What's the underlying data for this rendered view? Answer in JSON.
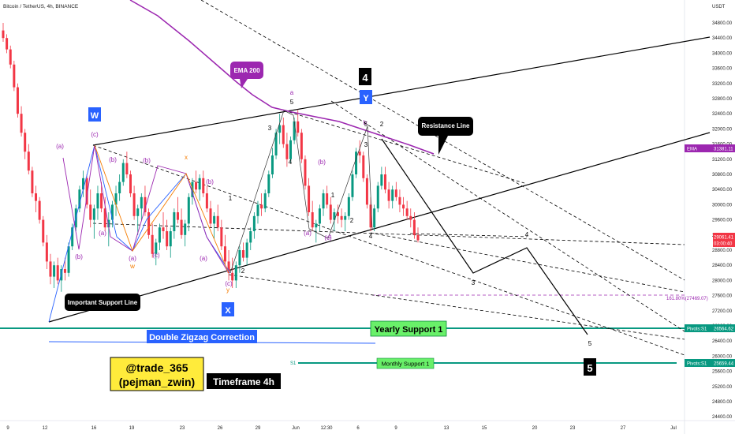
{
  "header": {
    "title": "Bitcoin / TetherUS, 4h, BINANCE",
    "currency": "USDT"
  },
  "chart_data": {
    "type": "candlestick",
    "y_axis": {
      "ticks": [
        "34800.00",
        "34400.00",
        "34000.00",
        "33600.00",
        "33200.00",
        "32800.00",
        "32400.00",
        "32000.00",
        "31600.00",
        "31200.00",
        "30800.00",
        "30400.00",
        "30000.00",
        "29600.00",
        "29200.00",
        "28800.00",
        "28400.00",
        "28000.00",
        "27600.00",
        "27200.00",
        "26800.00",
        "26400.00",
        "26000.00",
        "25600.00",
        "25200.00",
        "24800.00",
        "24400.00"
      ]
    },
    "x_axis": {
      "ticks": [
        "9",
        "12",
        "16",
        "19",
        "23",
        "26",
        "29",
        "Jun",
        "12:30",
        "6",
        "9",
        "13",
        "15",
        "20",
        "23",
        "27",
        "Jul"
      ]
    },
    "price_tags": [
      {
        "label": "EMA",
        "value": "31381.11",
        "color": "#9c27b0"
      },
      {
        "label": "",
        "value": "29061.41",
        "sub": "03:00:40",
        "color": "#f23645"
      },
      {
        "label": "Pivots:S1",
        "value": "26564.62",
        "color": "#089981"
      },
      {
        "label": "Pivots:S1",
        "value": "25659.44",
        "color": "#089981"
      }
    ],
    "candles_ohlc": [
      [
        34600,
        34800,
        34300,
        34400
      ],
      [
        34400,
        34500,
        34000,
        34100
      ],
      [
        34100,
        34200,
        33600,
        33700
      ],
      [
        33700,
        33800,
        33000,
        33100
      ],
      [
        33100,
        33200,
        32300,
        32400
      ],
      [
        32400,
        32600,
        31800,
        31900
      ],
      [
        31900,
        32000,
        31200,
        31400
      ],
      [
        31400,
        31600,
        30800,
        30900
      ],
      [
        30900,
        31000,
        30200,
        30300
      ],
      [
        30300,
        30500,
        29800,
        30100
      ],
      [
        30100,
        30200,
        29500,
        29600
      ],
      [
        29600,
        29700,
        28900,
        29000
      ],
      [
        29000,
        29200,
        28300,
        28500
      ],
      [
        28500,
        28700,
        27900,
        28100
      ],
      [
        28100,
        28500,
        27800,
        28400
      ],
      [
        28400,
        28600,
        27900,
        28000
      ],
      [
        28000,
        28400,
        27700,
        28300
      ],
      [
        28300,
        28600,
        28000,
        28200
      ],
      [
        28200,
        29000,
        28100,
        28900
      ],
      [
        28900,
        29500,
        28800,
        29400
      ],
      [
        29400,
        30000,
        29300,
        29900
      ],
      [
        29900,
        30500,
        29800,
        30400
      ],
      [
        30400,
        30900,
        30200,
        30700
      ],
      [
        30700,
        30800,
        29900,
        30000
      ],
      [
        30000,
        30400,
        29400,
        29600
      ],
      [
        29600,
        30000,
        29100,
        29900
      ],
      [
        29900,
        30500,
        29600,
        30300
      ],
      [
        30300,
        30600,
        29800,
        29900
      ],
      [
        29900,
        30200,
        29300,
        29400
      ],
      [
        29400,
        29800,
        28900,
        29600
      ],
      [
        29600,
        30100,
        29400,
        30000
      ],
      [
        30000,
        30500,
        29700,
        30300
      ],
      [
        30300,
        30800,
        30100,
        30600
      ],
      [
        30600,
        31200,
        30500,
        31100
      ],
      [
        31100,
        31400,
        30700,
        30800
      ],
      [
        30800,
        30900,
        30200,
        30300
      ],
      [
        30300,
        30500,
        29600,
        29700
      ],
      [
        29700,
        30000,
        29200,
        29900
      ],
      [
        29900,
        30300,
        29600,
        30200
      ],
      [
        30200,
        30500,
        29700,
        29800
      ],
      [
        29800,
        29900,
        29100,
        29200
      ],
      [
        29200,
        29500,
        28600,
        28700
      ],
      [
        28700,
        29100,
        28400,
        29000
      ],
      [
        29000,
        29500,
        28800,
        29400
      ],
      [
        29400,
        29800,
        29100,
        29300
      ],
      [
        29300,
        29600,
        28800,
        28900
      ],
      [
        28900,
        29400,
        28600,
        29300
      ],
      [
        29300,
        29900,
        29100,
        29800
      ],
      [
        29800,
        30200,
        29500,
        29600
      ],
      [
        29600,
        29900,
        29100,
        29200
      ],
      [
        29200,
        29600,
        28900,
        29500
      ],
      [
        29500,
        30300,
        29300,
        30200
      ],
      [
        30200,
        30700,
        30000,
        30600
      ],
      [
        30600,
        30900,
        30300,
        30400
      ],
      [
        30400,
        30800,
        30100,
        30700
      ],
      [
        30700,
        30900,
        30200,
        30300
      ],
      [
        30300,
        30500,
        29800,
        29900
      ],
      [
        29900,
        30100,
        29400,
        29500
      ],
      [
        29500,
        29800,
        29100,
        29700
      ],
      [
        29700,
        30000,
        29300,
        29400
      ],
      [
        29400,
        29600,
        28800,
        28900
      ],
      [
        28900,
        29200,
        28400,
        28500
      ],
      [
        28500,
        28800,
        28000,
        28200
      ],
      [
        28200,
        28600,
        27800,
        28000
      ],
      [
        28000,
        28500,
        27800,
        28400
      ],
      [
        28400,
        28900,
        28200,
        28800
      ],
      [
        28800,
        29000,
        28500,
        28600
      ],
      [
        28600,
        29100,
        28400,
        29000
      ],
      [
        29000,
        29400,
        28800,
        29300
      ],
      [
        29300,
        29800,
        29100,
        29700
      ],
      [
        29700,
        30100,
        29500,
        30000
      ],
      [
        30000,
        30300,
        29700,
        29900
      ],
      [
        29900,
        30400,
        29800,
        30300
      ],
      [
        30300,
        30900,
        30200,
        30800
      ],
      [
        30800,
        31500,
        30700,
        31300
      ],
      [
        31300,
        32000,
        31200,
        31900
      ],
      [
        31900,
        32400,
        31600,
        32100
      ],
      [
        32100,
        32300,
        31500,
        31600
      ],
      [
        31600,
        31900,
        31000,
        31200
      ],
      [
        31200,
        31800,
        31100,
        31700
      ],
      [
        31700,
        32300,
        31600,
        32200
      ],
      [
        32200,
        32500,
        31800,
        31900
      ],
      [
        31900,
        32000,
        31100,
        31200
      ],
      [
        31200,
        31300,
        30400,
        30500
      ],
      [
        30500,
        30700,
        29700,
        29800
      ],
      [
        29800,
        30100,
        29300,
        29400
      ],
      [
        29400,
        29600,
        29000,
        29500
      ],
      [
        29500,
        30000,
        29300,
        29900
      ],
      [
        29900,
        30400,
        29700,
        30300
      ],
      [
        30300,
        30500,
        29900,
        30000
      ],
      [
        30000,
        30200,
        29500,
        29600
      ],
      [
        29600,
        29900,
        29300,
        29800
      ],
      [
        29800,
        30000,
        29500,
        29700
      ],
      [
        29700,
        29900,
        29400,
        29600
      ],
      [
        29600,
        29800,
        29300,
        29700
      ],
      [
        29700,
        30300,
        29600,
        30200
      ],
      [
        30200,
        30900,
        30100,
        30800
      ],
      [
        30800,
        31500,
        30700,
        31400
      ],
      [
        31400,
        31700,
        31100,
        31300
      ],
      [
        31300,
        31400,
        30600,
        30700
      ],
      [
        30700,
        30800,
        29900,
        30000
      ],
      [
        30000,
        30200,
        29300,
        29400
      ],
      [
        29400,
        30000,
        29300,
        29900
      ],
      [
        29900,
        30600,
        29800,
        30500
      ],
      [
        30500,
        31000,
        30400,
        30800
      ],
      [
        30800,
        31000,
        30300,
        30400
      ],
      [
        30400,
        30600,
        29900,
        30100
      ],
      [
        30100,
        30500,
        29900,
        30400
      ],
      [
        30400,
        30600,
        30100,
        30200
      ],
      [
        30200,
        30400,
        29800,
        30000
      ],
      [
        30000,
        30200,
        29700,
        29900
      ],
      [
        29900,
        30100,
        29600,
        29700
      ],
      [
        29700,
        29900,
        29400,
        29600
      ],
      [
        29600,
        29800,
        29100,
        29200
      ],
      [
        29200,
        29400,
        29000,
        29061
      ]
    ],
    "ema200": {
      "label": "EMA 200",
      "value": "31381.11"
    },
    "annotations": {
      "callouts": [
        {
          "text": "EMA 200"
        },
        {
          "text": "Resistance Line"
        },
        {
          "text": "Important Support Line"
        }
      ],
      "boxes": [
        {
          "text": "Double Zigzag Correction"
        },
        {
          "text": "Yearly Support 1"
        },
        {
          "text": "Monthly Support 1"
        },
        {
          "text": "@trade_365"
        },
        {
          "text": "(pejman_zwin)"
        },
        {
          "text": "Timeframe 4h"
        }
      ],
      "wave_boxes": [
        "W",
        "X",
        "Y",
        "4",
        "5"
      ],
      "fib_label": "161.80%(27469.07)",
      "s1_label": "S1",
      "wave_labels": [
        {
          "text": "(a)",
          "color": "#9c27b0"
        },
        {
          "text": "(b)",
          "color": "#9c27b0"
        },
        {
          "text": "(c)",
          "color": "#9c27b0"
        },
        {
          "text": "(a)",
          "color": "#9c27b0"
        },
        {
          "text": "(b)",
          "color": "#9c27b0"
        },
        {
          "text": "(a)",
          "color": "#9c27b0"
        },
        {
          "text": "(b)",
          "color": "#9c27b0"
        },
        {
          "text": "(c)",
          "color": "#9c27b0"
        },
        {
          "text": "(a)",
          "color": "#9c27b0"
        },
        {
          "text": "(b)",
          "color": "#9c27b0"
        },
        {
          "text": "(c)",
          "color": "#9c27b0"
        },
        {
          "text": "(a)",
          "color": "#9c27b0"
        },
        {
          "text": "(b)",
          "color": "#9c27b0"
        },
        {
          "text": "(c)",
          "color": "#9c27b0"
        },
        {
          "text": "x",
          "color": "#f57c00"
        },
        {
          "text": "w",
          "color": "#f57c00"
        },
        {
          "text": "y",
          "color": "#f57c00"
        },
        {
          "text": "a",
          "color": "#9c27b0"
        },
        {
          "text": "b",
          "color": "#9c27b0"
        },
        {
          "text": "c",
          "color": "#9c27b0"
        },
        {
          "text": "1",
          "color": "#000"
        },
        {
          "text": "2",
          "color": "#000"
        },
        {
          "text": "3",
          "color": "#000"
        },
        {
          "text": "4",
          "color": "#000"
        },
        {
          "text": "5",
          "color": "#000"
        },
        {
          "text": "1",
          "color": "#000"
        },
        {
          "text": "2",
          "color": "#000"
        },
        {
          "text": "3",
          "color": "#000"
        },
        {
          "text": "4",
          "color": "#000"
        },
        {
          "text": "5",
          "color": "#000"
        },
        {
          "text": "2",
          "color": "#000"
        },
        {
          "text": "3",
          "color": "#000"
        },
        {
          "text": "4",
          "color": "#000"
        },
        {
          "text": "5",
          "color": "#000"
        }
      ]
    }
  }
}
